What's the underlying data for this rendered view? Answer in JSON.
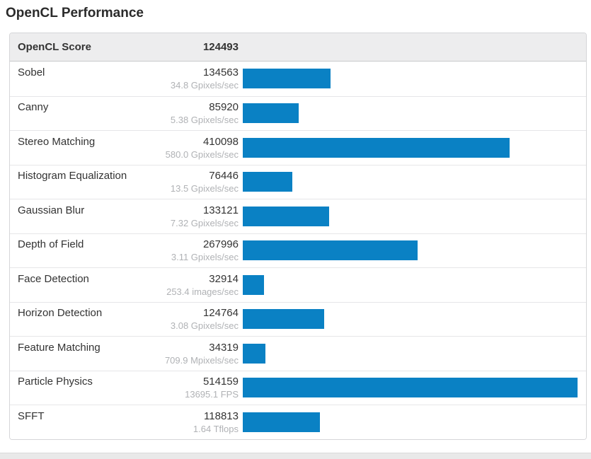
{
  "title": "OpenCL Performance",
  "overall": {
    "label": "OpenCL Score",
    "score": "124493"
  },
  "colors": {
    "bar_blue": "#0a81c4",
    "header_row_bg": "#ededee",
    "score_text": "#333333",
    "rate_text": "#b0b2b5",
    "page_strip": "#e9e9e9"
  },
  "chart_data": {
    "type": "bar",
    "orientation": "horizontal",
    "title": "OpenCL Performance",
    "overall_score_label": "OpenCL Score",
    "overall_score": 124493,
    "categories": [
      "Sobel",
      "Canny",
      "Stereo Matching",
      "Histogram Equalization",
      "Gaussian Blur",
      "Depth of Field",
      "Face Detection",
      "Horizon Detection",
      "Feature Matching",
      "Particle Physics",
      "SFFT"
    ],
    "values": [
      134563,
      85920,
      410098,
      76446,
      133121,
      267996,
      32914,
      124764,
      34319,
      514159,
      118813
    ],
    "rate_labels": [
      "34.8 Gpixels/sec",
      "5.38 Gpixels/sec",
      "580.0 Gpixels/sec",
      "13.5 Gpixels/sec",
      "7.32 Gpixels/sec",
      "3.11 Gpixels/sec",
      "253.4 images/sec",
      "3.08 Gpixels/sec",
      "709.9 Mpixels/sec",
      "13695.1 FPS",
      "1.64 Tflops"
    ],
    "xlim": [
      0,
      514159
    ],
    "grid": false,
    "legend": false,
    "bar_color": "#0a81c4"
  }
}
